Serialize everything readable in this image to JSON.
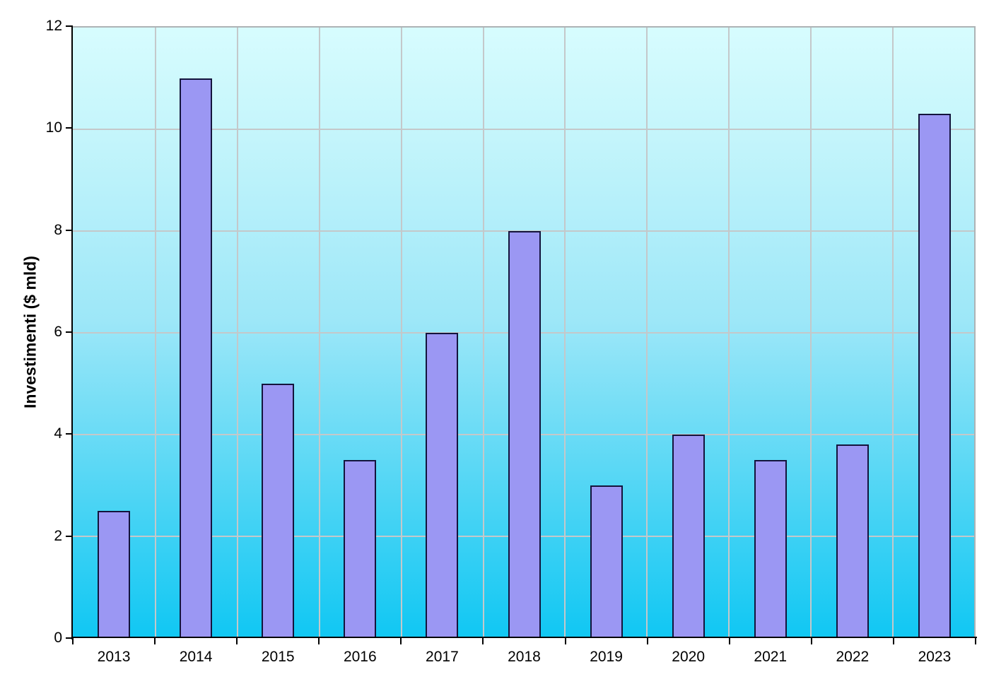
{
  "chart_data": {
    "type": "bar",
    "title": "",
    "xlabel": "",
    "ylabel": "Investimenti ($ mld)",
    "categories": [
      "2013",
      "2014",
      "2015",
      "2016",
      "2017",
      "2018",
      "2019",
      "2020",
      "2021",
      "2022",
      "2023"
    ],
    "values": [
      2.5,
      11,
      5,
      3.5,
      6,
      8,
      3,
      4,
      3.5,
      3.8,
      10.3
    ],
    "ylim": [
      0,
      12
    ],
    "yticks": [
      0,
      2,
      4,
      6,
      8,
      10,
      12
    ],
    "grid": true,
    "legend": false,
    "colors": {
      "bar_fill": "#9b97f3",
      "bar_border": "#14143c",
      "plot_bg_top": "#d7fcfe",
      "plot_bg_mid": "#9de7f8",
      "plot_bg_bottom": "#10c7f3",
      "gridline": "#c4c8ca",
      "axis": "#000000",
      "text": "#000000"
    }
  }
}
